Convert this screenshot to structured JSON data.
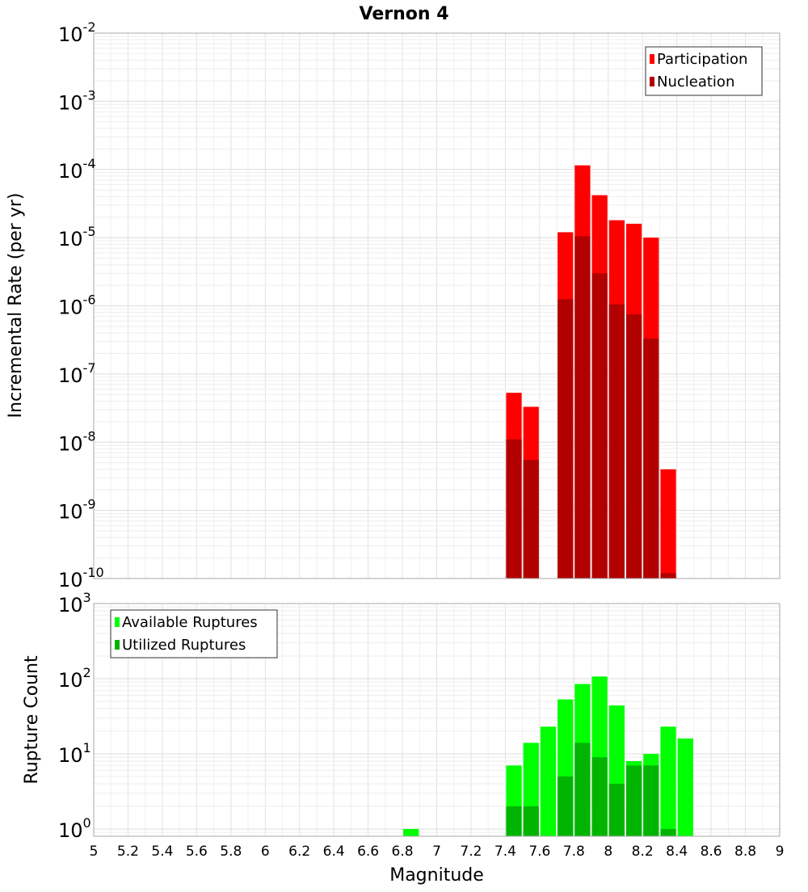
{
  "title": "Vernon 4",
  "chart_data": [
    {
      "type": "bar",
      "ylabel": "Incremental Rate (per yr)",
      "yscale": "log",
      "ylim": [
        1e-10,
        0.01
      ],
      "yticks": [
        {
          "base": "10",
          "exp": "-10"
        },
        {
          "base": "10",
          "exp": "-9"
        },
        {
          "base": "10",
          "exp": "-8"
        },
        {
          "base": "10",
          "exp": "-7"
        },
        {
          "base": "10",
          "exp": "-6"
        },
        {
          "base": "10",
          "exp": "-5"
        },
        {
          "base": "10",
          "exp": "-4"
        },
        {
          "base": "10",
          "exp": "-3"
        },
        {
          "base": "10",
          "exp": "-2"
        }
      ],
      "xlim": [
        5,
        9
      ],
      "bin_width": 0.1,
      "legend_position": "top-right",
      "grid": true,
      "series": [
        {
          "name": "Participation",
          "color": "#ff0000",
          "x": [
            7.45,
            7.55,
            7.75,
            7.85,
            7.95,
            8.05,
            8.15,
            8.25,
            8.35
          ],
          "values": [
            5.3e-08,
            3.3e-08,
            1.2e-05,
            0.000115,
            4.2e-05,
            1.8e-05,
            1.6e-05,
            1e-05,
            4e-09
          ]
        },
        {
          "name": "Nucleation",
          "color": "#b20000",
          "x": [
            7.45,
            7.55,
            7.75,
            7.85,
            7.95,
            8.05,
            8.15,
            8.25,
            8.35
          ],
          "values": [
            1.1e-08,
            5.5e-09,
            1.25e-06,
            1.05e-05,
            3e-06,
            1.05e-06,
            7.5e-07,
            3.3e-07,
            1.2e-10
          ]
        }
      ]
    },
    {
      "type": "bar",
      "ylabel": "Rupture Count",
      "xlabel": "Magnitude",
      "yscale": "log",
      "ylim": [
        0.8,
        1000
      ],
      "yticks": [
        {
          "base": "10",
          "exp": "0"
        },
        {
          "base": "10",
          "exp": "1"
        },
        {
          "base": "10",
          "exp": "2"
        },
        {
          "base": "10",
          "exp": "3"
        }
      ],
      "xlim": [
        5,
        9
      ],
      "xticks": [
        "5",
        "5.2",
        "5.4",
        "5.6",
        "5.8",
        "6",
        "6.2",
        "6.4",
        "6.6",
        "6.8",
        "7",
        "7.2",
        "7.4",
        "7.6",
        "7.8",
        "8",
        "8.2",
        "8.4",
        "8.6",
        "8.8",
        "9"
      ],
      "bin_width": 0.1,
      "legend_position": "top-left",
      "grid": true,
      "series": [
        {
          "name": "Available Ruptures",
          "color": "#00ff00",
          "x": [
            6.85,
            7.45,
            7.55,
            7.65,
            7.75,
            7.85,
            7.95,
            8.05,
            8.15,
            8.25,
            8.35,
            8.45
          ],
          "values": [
            1,
            7,
            14,
            23,
            53,
            85,
            107,
            44,
            8,
            10,
            23,
            16
          ]
        },
        {
          "name": "Utilized Ruptures",
          "color": "#00b400",
          "x": [
            7.45,
            7.55,
            7.75,
            7.85,
            7.95,
            8.05,
            8.15,
            8.25,
            8.35
          ],
          "values": [
            2,
            2,
            5,
            14,
            9,
            4,
            7,
            7,
            1
          ]
        }
      ]
    }
  ]
}
